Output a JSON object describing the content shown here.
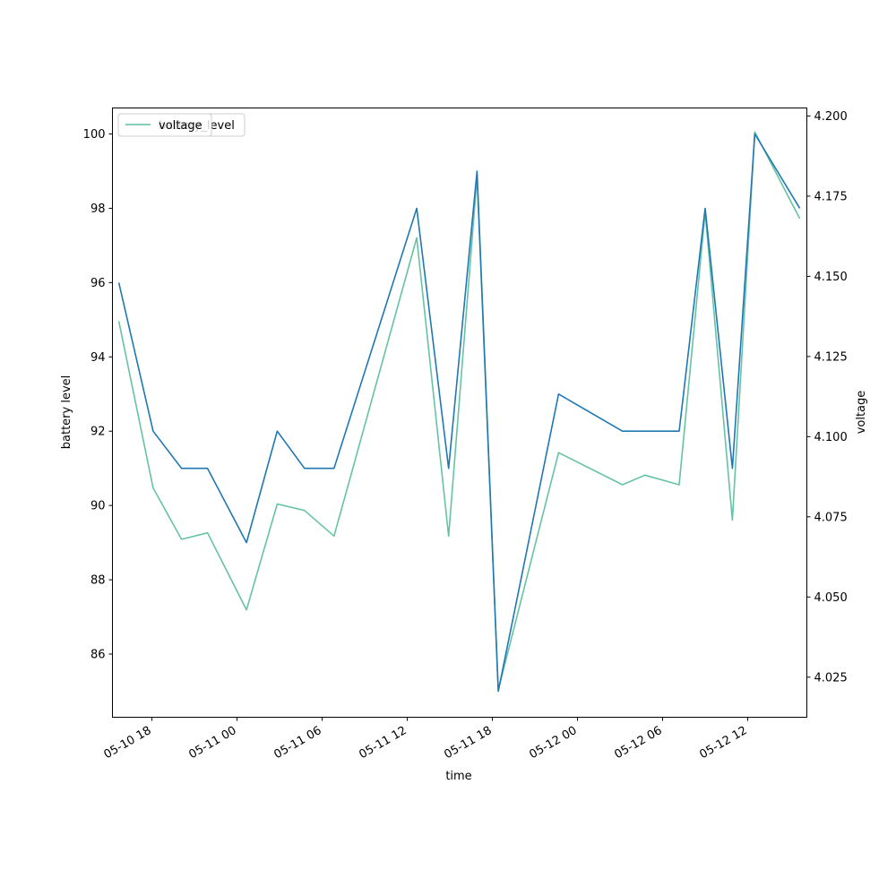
{
  "chart_data": {
    "type": "line",
    "xlabel": "time",
    "ylabel_left": "battery level",
    "ylabel_right": "voltage",
    "ylim_left": [
      84.3,
      100.7
    ],
    "ylim_right": [
      4.0125,
      4.2025
    ],
    "xlim": [
      "2025-05-10 15:13",
      "2025-05-12 16:10"
    ],
    "x_ticks": [
      {
        "t": "2025-05-10 18:00",
        "label": "05-10 18"
      },
      {
        "t": "2025-05-11 00:00",
        "label": "05-11 00"
      },
      {
        "t": "2025-05-11 06:00",
        "label": "05-11 06"
      },
      {
        "t": "2025-05-11 12:00",
        "label": "05-11 12"
      },
      {
        "t": "2025-05-11 18:00",
        "label": "05-11 18"
      },
      {
        "t": "2025-05-12 00:00",
        "label": "05-12 00"
      },
      {
        "t": "2025-05-12 06:00",
        "label": "05-12 06"
      },
      {
        "t": "2025-05-12 12:00",
        "label": "05-12 12"
      }
    ],
    "y_ticks_left": [
      86,
      88,
      90,
      92,
      94,
      96,
      98,
      100
    ],
    "y_ticks_right": [
      4.025,
      4.05,
      4.075,
      4.1,
      4.125,
      4.15,
      4.175,
      4.2
    ],
    "y_tick_labels_right": [
      "4.025",
      "4.050",
      "4.075",
      "4.100",
      "4.125",
      "4.150",
      "4.175",
      "4.200"
    ],
    "grid": false,
    "legend_placement": "top-left",
    "series": [
      {
        "name": "battery_level",
        "axis": "left",
        "color": "#1f77b4",
        "points": [
          {
            "t": "2025-05-10 15:40",
            "y": 96
          },
          {
            "t": "2025-05-10 18:05",
            "y": 92
          },
          {
            "t": "2025-05-10 20:05",
            "y": 91
          },
          {
            "t": "2025-05-10 21:55",
            "y": 91
          },
          {
            "t": "2025-05-11 00:40",
            "y": 89
          },
          {
            "t": "2025-05-11 02:50",
            "y": 92
          },
          {
            "t": "2025-05-11 04:45",
            "y": 91
          },
          {
            "t": "2025-05-11 06:50",
            "y": 91
          },
          {
            "t": "2025-05-11 12:40",
            "y": 98
          },
          {
            "t": "2025-05-11 14:55",
            "y": 91
          },
          {
            "t": "2025-05-11 16:55",
            "y": 99
          },
          {
            "t": "2025-05-11 18:25",
            "y": 85
          },
          {
            "t": "2025-05-11 22:40",
            "y": 93
          },
          {
            "t": "2025-05-12 03:10",
            "y": 92
          },
          {
            "t": "2025-05-12 07:10",
            "y": 92
          },
          {
            "t": "2025-05-12 09:00",
            "y": 98
          },
          {
            "t": "2025-05-12 10:55",
            "y": 91
          },
          {
            "t": "2025-05-12 12:30",
            "y": 100
          },
          {
            "t": "2025-05-12 15:40",
            "y": 98
          }
        ]
      },
      {
        "name": "voltage",
        "axis": "right",
        "color": "#66c2a5",
        "points": [
          {
            "t": "2025-05-10 15:40",
            "y": 4.136
          },
          {
            "t": "2025-05-10 18:05",
            "y": 4.084
          },
          {
            "t": "2025-05-10 20:05",
            "y": 4.068
          },
          {
            "t": "2025-05-10 21:55",
            "y": 4.07
          },
          {
            "t": "2025-05-11 00:40",
            "y": 4.046
          },
          {
            "t": "2025-05-11 02:50",
            "y": 4.079
          },
          {
            "t": "2025-05-11 04:45",
            "y": 4.077
          },
          {
            "t": "2025-05-11 06:50",
            "y": 4.069
          },
          {
            "t": "2025-05-11 12:40",
            "y": 4.162
          },
          {
            "t": "2025-05-11 14:55",
            "y": 4.069
          },
          {
            "t": "2025-05-11 16:55",
            "y": 4.181
          },
          {
            "t": "2025-05-11 18:25",
            "y": 4.021
          },
          {
            "t": "2025-05-11 22:40",
            "y": 4.095
          },
          {
            "t": "2025-05-12 03:10",
            "y": 4.085
          },
          {
            "t": "2025-05-12 04:45",
            "y": 4.088
          },
          {
            "t": "2025-05-12 07:10",
            "y": 4.085
          },
          {
            "t": "2025-05-12 09:00",
            "y": 4.17
          },
          {
            "t": "2025-05-12 10:55",
            "y": 4.074
          },
          {
            "t": "2025-05-12 12:30",
            "y": 4.195
          },
          {
            "t": "2025-05-12 15:40",
            "y": 4.168
          }
        ]
      }
    ],
    "legend": [
      {
        "label": "battery_level",
        "color": "#1f77b4"
      },
      {
        "label": "voltage",
        "color": "#66c2a5"
      }
    ]
  }
}
